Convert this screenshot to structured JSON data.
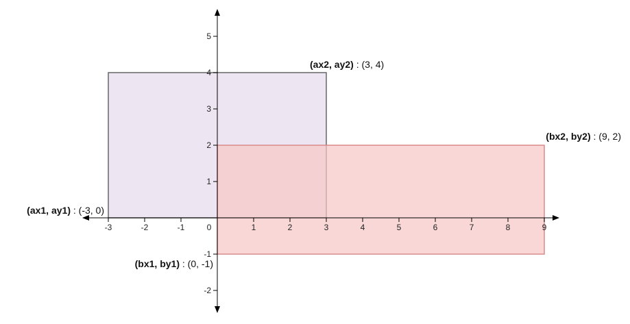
{
  "diagram": {
    "x_axis": {
      "min": -3,
      "max": 9,
      "ticks": [
        -3,
        -2,
        -1,
        0,
        1,
        2,
        3,
        4,
        5,
        6,
        7,
        8,
        9
      ]
    },
    "y_axis": {
      "min": -2,
      "max": 5,
      "ticks": [
        -2,
        -1,
        1,
        2,
        3,
        4,
        5
      ]
    },
    "rect_a": {
      "x1": -3,
      "y1": 0,
      "x2": 3,
      "y2": 4,
      "fill": "#e6dcec",
      "stroke": "#666666",
      "bottom_left_label": {
        "vars": "(ax1, ay1)",
        "value": " : (-3, 0)"
      },
      "top_right_label": {
        "vars": "(ax2, ay2)",
        "value": " : (3, 4)"
      }
    },
    "rect_b": {
      "x1": 0,
      "y1": -1,
      "x2": 9,
      "y2": 2,
      "fill": "#f6c6c6",
      "stroke": "#d98a8a",
      "bottom_left_label": {
        "vars": "(bx1, by1)",
        "value": " : (0, -1)"
      },
      "top_right_label": {
        "vars": "(bx2, by2)",
        "value": " : (9, 2)"
      }
    }
  }
}
